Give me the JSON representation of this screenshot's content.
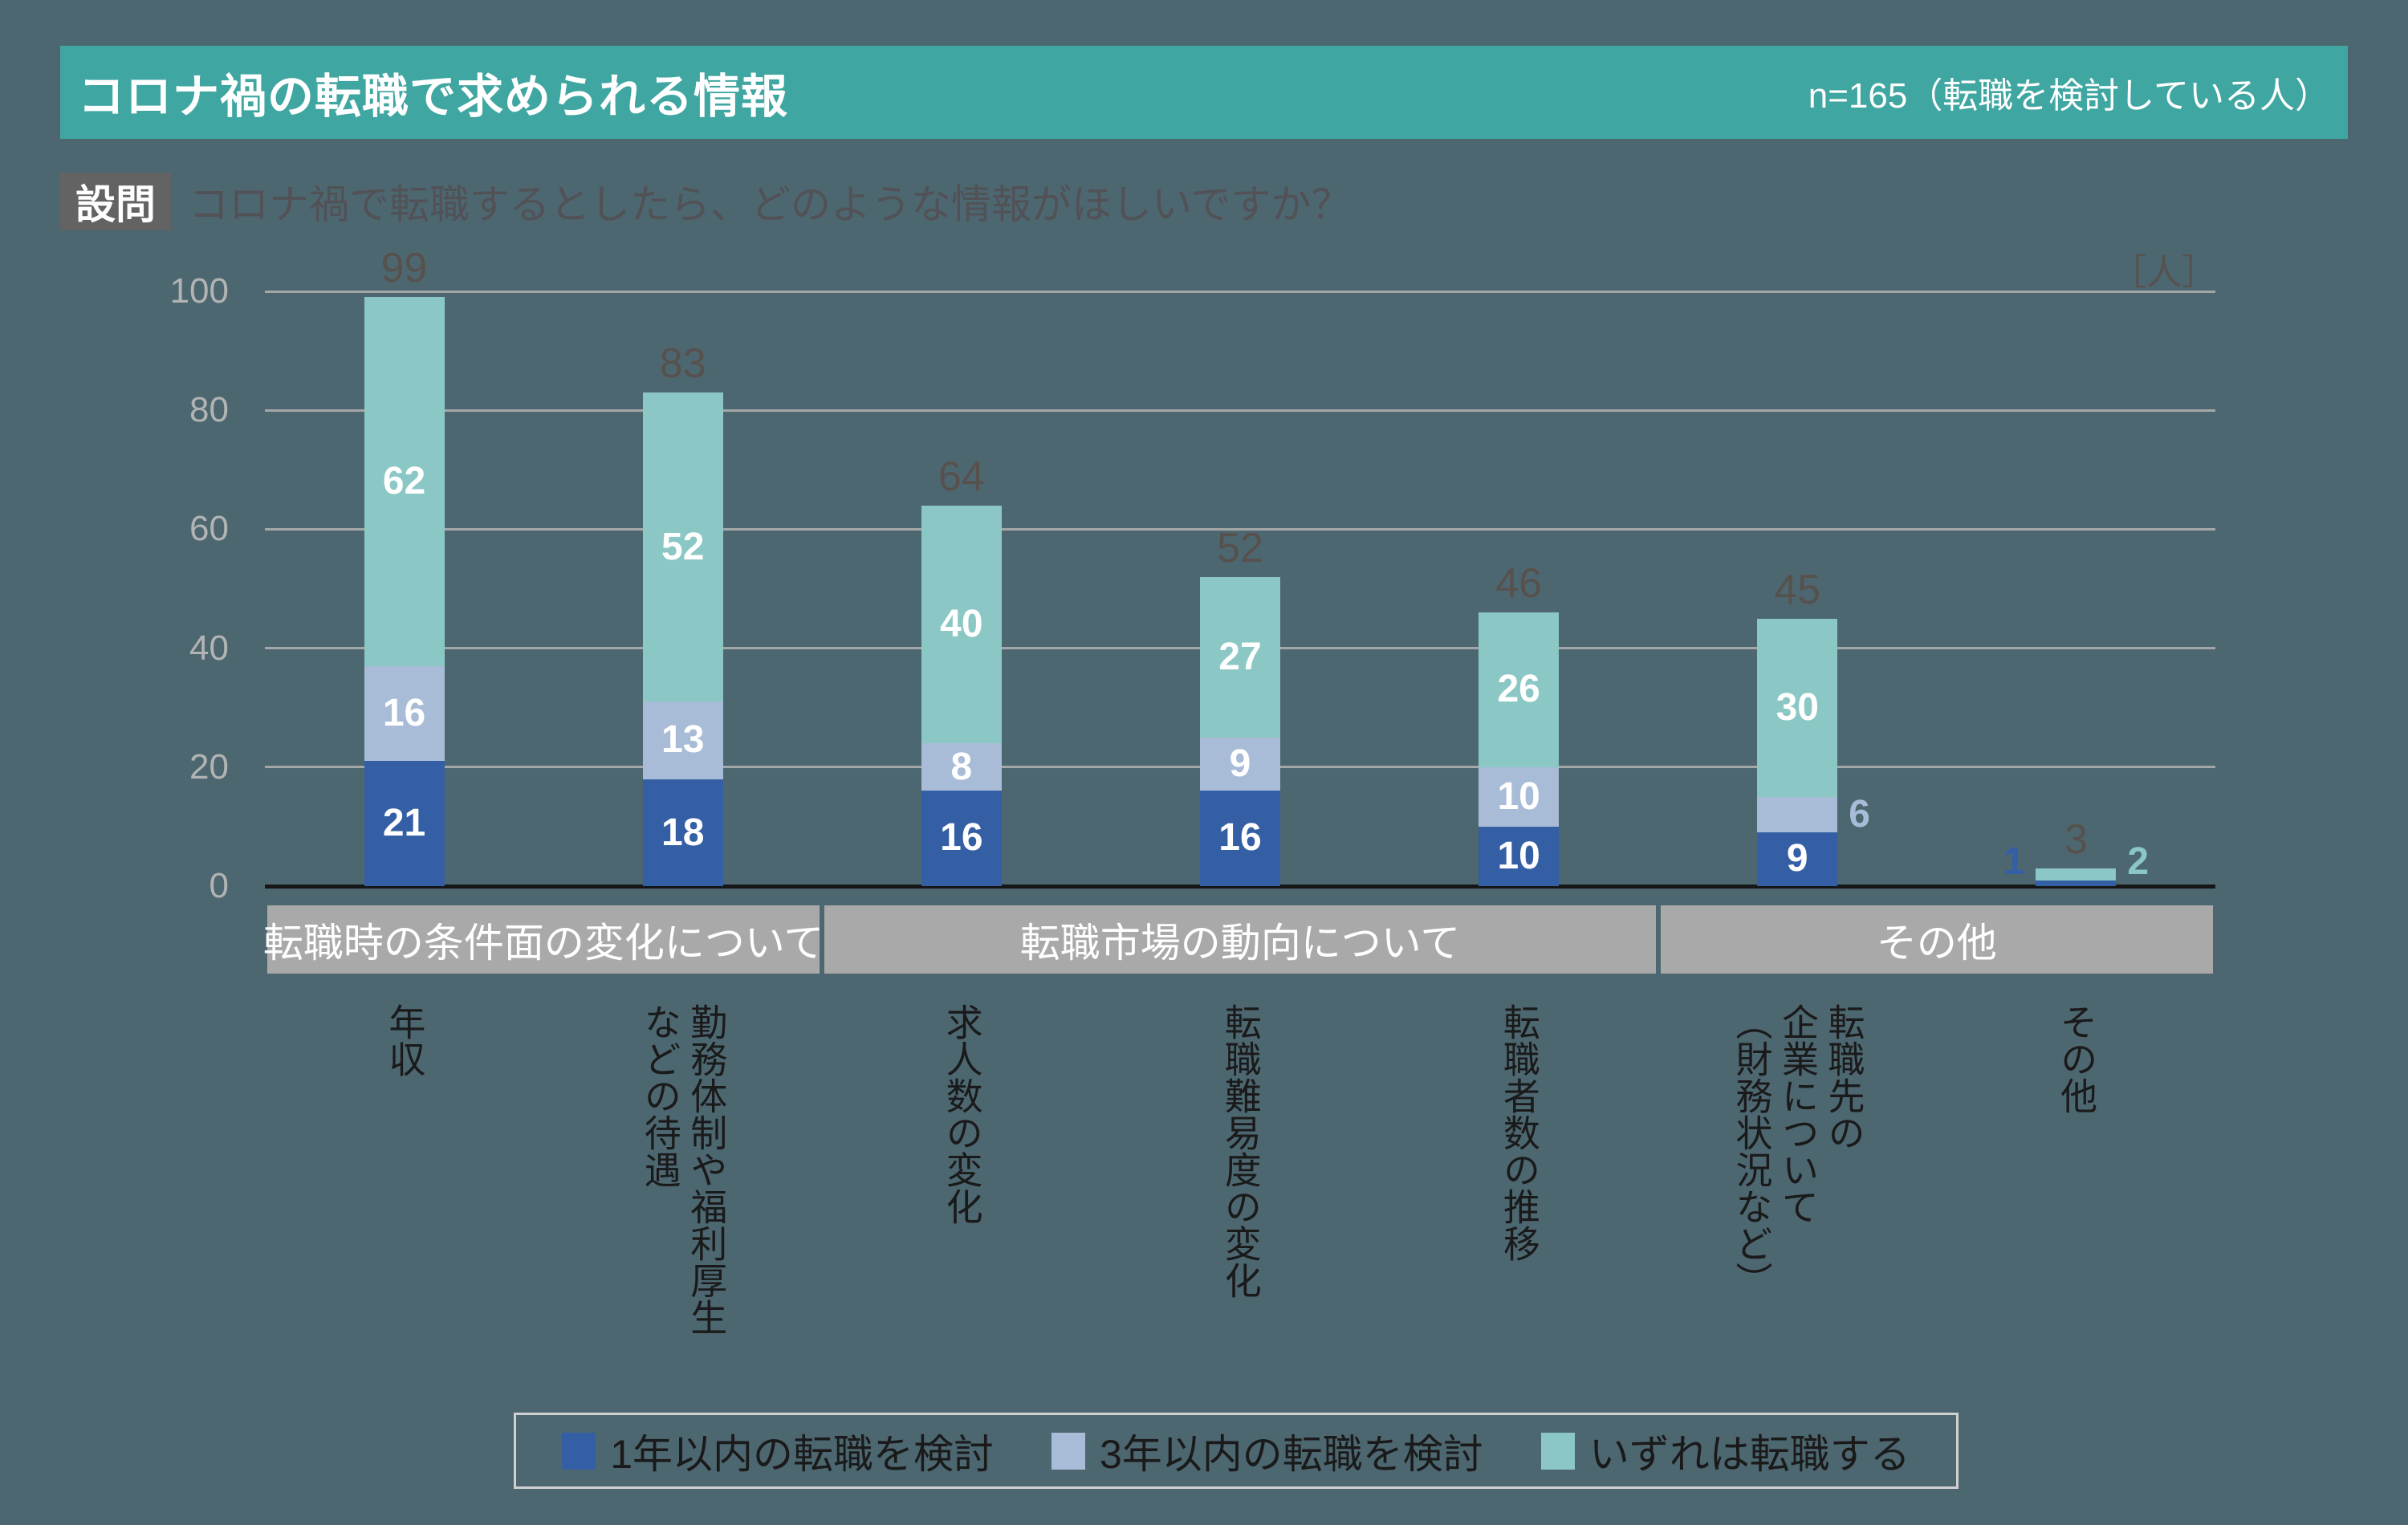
{
  "header": {
    "title": "コロナ禍の転職で求められる情報",
    "sample_note": "n=165（転職を検討している人）"
  },
  "question": {
    "label": "設問",
    "text": "コロナ禍で転職するとしたら、どのような情報がほしいですか？"
  },
  "unit_label": "［人］",
  "colors": {
    "background": "#4d6771",
    "header_bar": "#3fa6a1",
    "question_badge": "#636363",
    "question_text": "#515156",
    "gridline": "#a4a7a7",
    "axis_line": "#161616",
    "ytick_label": "#b2b4b4",
    "total_label": "#57514e",
    "group_band": "#a9a9a9",
    "category_label": "#1a1a1a",
    "series_1": "#355fa5",
    "series_2": "#a9bcd7",
    "series_3": "#8bc8c5"
  },
  "chart_data": {
    "type": "bar",
    "stacked": true,
    "title": "コロナ禍の転職で求められる情報",
    "unit": "人",
    "ylim": [
      0,
      100
    ],
    "yticks": [
      0,
      20,
      40,
      60,
      80,
      100
    ],
    "grid": true,
    "legend_position": "bottom",
    "categories": [
      "年収",
      "勤務体制や福利厚生などの待遇",
      "求人数の変化",
      "転職難易度の変化",
      "転職者数の推移",
      "転職先の企業について（財務状況など）",
      "その他"
    ],
    "category_label_lines": [
      [
        "年収"
      ],
      [
        "勤務体制や福利厚生",
        "などの待遇"
      ],
      [
        "求人数の変化"
      ],
      [
        "転職難易度の変化"
      ],
      [
        "転職者数の推移"
      ],
      [
        "転職先の",
        "企業について",
        "（財務状況など）"
      ],
      [
        "その他"
      ]
    ],
    "groups": [
      {
        "label": "転職時の条件面の変化について",
        "from": 0,
        "to": 1
      },
      {
        "label": "転職市場の動向について",
        "from": 2,
        "to": 4
      },
      {
        "label": "その他",
        "from": 5,
        "to": 6
      }
    ],
    "series": [
      {
        "name": "1年以内の転職を検討",
        "color": "#355fa5",
        "values": [
          21,
          18,
          16,
          16,
          10,
          9,
          1
        ]
      },
      {
        "name": "3年以内の転職を検討",
        "color": "#a9bcd7",
        "values": [
          16,
          13,
          8,
          9,
          10,
          6,
          0
        ]
      },
      {
        "name": "いずれは転職する",
        "color": "#8bc8c5",
        "values": [
          62,
          52,
          40,
          27,
          26,
          30,
          2
        ]
      }
    ],
    "totals": [
      99,
      83,
      64,
      52,
      46,
      45,
      3
    ]
  }
}
